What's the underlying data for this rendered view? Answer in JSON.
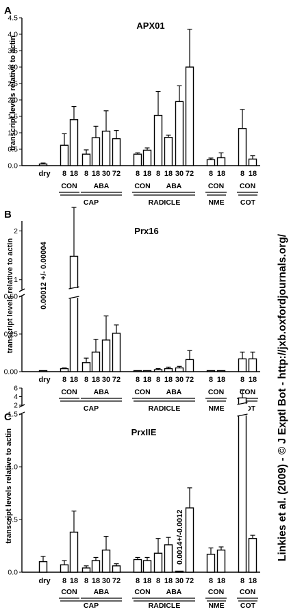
{
  "credit": "Linkies et al. (2009) - © J Exptl Bot - http://jxb.oxfordjournals.org/",
  "group_labels": [
    "CON",
    "ABA",
    "CON",
    "ABA",
    "CON",
    "CON"
  ],
  "tissue_labels": [
    "CAP",
    "RADICLE",
    "NME",
    "COT"
  ],
  "chart_data": [
    {
      "type": "bar",
      "panel": "A",
      "title": "APX01",
      "ylabel": "transcript levels relative to actin",
      "ylim": [
        0,
        4.5
      ],
      "yticks": [
        "0.0",
        "0.5",
        "1.0",
        "1.5",
        "2.0",
        "2.5",
        "3.0",
        "3.5",
        "4.0",
        "4.5"
      ],
      "categories": [
        "dry",
        "8",
        "18",
        "8",
        "18",
        "30",
        "72",
        "8",
        "18",
        "8",
        "18",
        "30",
        "72",
        "8",
        "18",
        "8",
        "18"
      ],
      "values": [
        0.05,
        0.62,
        1.4,
        0.35,
        0.85,
        1.05,
        0.82,
        0.35,
        0.47,
        1.53,
        0.86,
        1.95,
        3.0,
        0.18,
        0.24,
        1.13,
        0.2
      ],
      "errors": [
        0.03,
        0.35,
        0.4,
        0.13,
        0.35,
        0.62,
        0.25,
        0.04,
        0.07,
        0.73,
        0.07,
        0.48,
        1.15,
        0.05,
        0.15,
        0.58,
        0.1
      ],
      "annotations": []
    },
    {
      "type": "bar",
      "panel": "B",
      "title": "Prx16",
      "ylabel": "transcript levels relative to actin",
      "ylim": [
        0,
        2.2
      ],
      "axis_break": [
        0.5,
        0.8
      ],
      "yticks": [
        "0.00",
        "0.25",
        "0.50",
        "1",
        "2"
      ],
      "categories": [
        "dry",
        "8",
        "18",
        "8",
        "18",
        "30",
        "72",
        "8",
        "18",
        "8",
        "18",
        "30",
        "72",
        "8",
        "18",
        "8",
        "18"
      ],
      "values": [
        0.00012,
        0.02,
        1.48,
        0.06,
        0.13,
        0.21,
        0.255,
        0.003,
        0.003,
        0.013,
        0.02,
        0.025,
        0.08,
        0.004,
        0.003,
        0.085,
        0.085
      ],
      "errors": [
        4e-05,
        0.005,
        1.0,
        0.03,
        0.085,
        0.16,
        0.055,
        0.002,
        0.002,
        0.007,
        0.01,
        0.01,
        0.06,
        0.002,
        0.002,
        0.045,
        0.045
      ],
      "annotations": [
        {
          "text": "0.00012 +/- 0.00004",
          "at": "dry"
        }
      ]
    },
    {
      "type": "bar",
      "panel": "C",
      "title": "PrxIIE",
      "ylabel": "transcript levels relative to actin",
      "ylim": [
        0,
        6
      ],
      "axis_break": [
        1.5,
        2.0
      ],
      "yticks": [
        "0.0",
        "0.5",
        "1.0",
        "1.5",
        "2",
        "4",
        "6"
      ],
      "categories": [
        "dry",
        "8",
        "18",
        "8",
        "18",
        "30",
        "72",
        "8",
        "18",
        "8",
        "18",
        "30",
        "72",
        "8",
        "18",
        "8",
        "18"
      ],
      "values": [
        0.1,
        0.07,
        0.38,
        0.04,
        0.11,
        0.21,
        0.06,
        0.12,
        0.11,
        0.18,
        0.26,
        0.0014,
        0.61,
        0.17,
        0.21,
        3.7,
        0.32
      ],
      "errors": [
        0.05,
        0.04,
        0.2,
        0.02,
        0.03,
        0.13,
        0.02,
        0.02,
        0.03,
        0.14,
        0.07,
        0.0012,
        0.19,
        0.06,
        0.03,
        1.9,
        0.03
      ],
      "annotations": [
        {
          "text": "0.0014+/-0.0012",
          "at": "30"
        }
      ]
    }
  ]
}
